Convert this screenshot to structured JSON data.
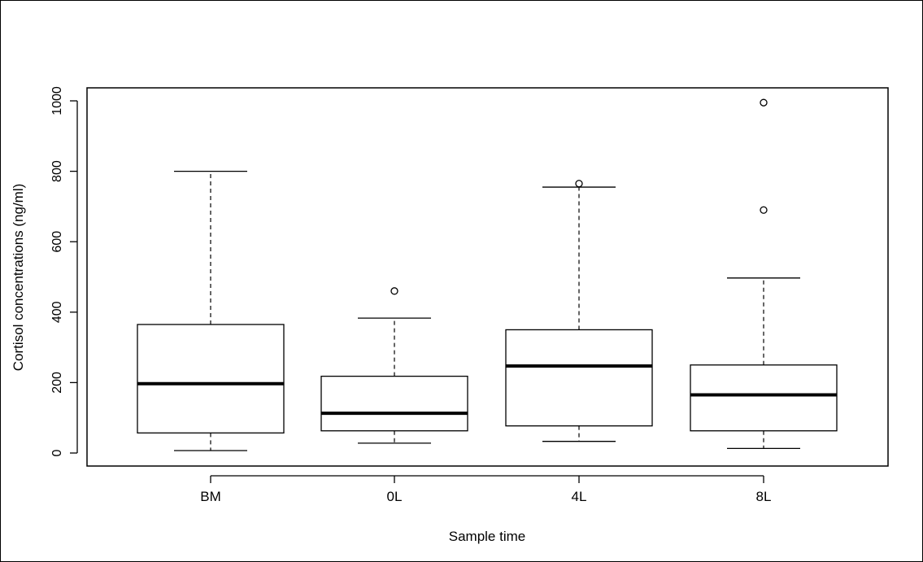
{
  "chart_data": {
    "type": "boxplot",
    "title": "",
    "xlabel": "Sample time",
    "ylabel": "Cortisol concentrations (ng/ml)",
    "ylim": [
      -35,
      1030
    ],
    "yticks": [
      0,
      200,
      400,
      600,
      800,
      1000
    ],
    "ytick_labels": [
      "0",
      "200",
      "400",
      "600",
      "800",
      "1000"
    ],
    "categories": [
      "BM",
      "0L",
      "4L",
      "8L"
    ],
    "boxes": [
      {
        "category": "BM",
        "whisker_low": 7,
        "q1": 57,
        "median": 197,
        "q3": 365,
        "whisker_high": 800,
        "outliers": []
      },
      {
        "category": "0L",
        "whisker_low": 28,
        "q1": 63,
        "median": 113,
        "q3": 218,
        "whisker_high": 383,
        "outliers": [
          460
        ]
      },
      {
        "category": "4L",
        "whisker_low": 33,
        "q1": 77,
        "median": 247,
        "q3": 350,
        "whisker_high": 755,
        "outliers": [
          765
        ]
      },
      {
        "category": "8L",
        "whisker_low": 13,
        "q1": 63,
        "median": 165,
        "q3": 250,
        "whisker_high": 497,
        "outliers": [
          690,
          995
        ]
      }
    ],
    "grid": false,
    "legend": "none"
  }
}
